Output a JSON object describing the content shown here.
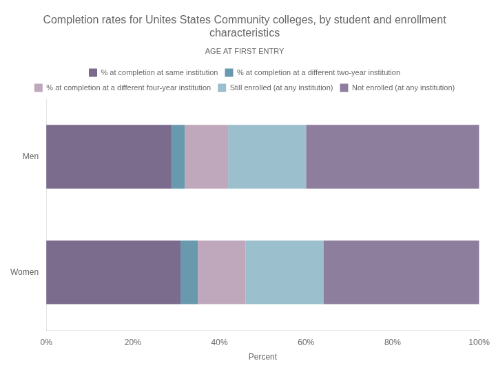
{
  "chart_data": {
    "type": "bar",
    "orientation": "horizontal",
    "stacked": true,
    "title": "Completion rates for Unites States Community colleges, by student and enrollment\ncharacteristics",
    "subtitle": "AGE AT FIRST ENTRY",
    "xlabel": "Percent",
    "categories": [
      "Men",
      "Women"
    ],
    "series": [
      {
        "name": "% at completion at same institution",
        "color": "#7B6B8D",
        "values": [
          29,
          31
        ]
      },
      {
        "name": "% at completion at a different two-year institution",
        "color": "#6899AD",
        "values": [
          3,
          4
        ]
      },
      {
        "name": "% at completion at a different four-year institution",
        "color": "#C0A8BC",
        "values": [
          10,
          11
        ]
      },
      {
        "name": "Still enrolled (at any institution)",
        "color": "#9BBFCC",
        "values": [
          18,
          18
        ]
      },
      {
        "name": "Not enrolled (at any institution)",
        "color": "#8E7E9E",
        "values": [
          40,
          36
        ]
      }
    ],
    "xlim": [
      0,
      100
    ],
    "xticks": [
      {
        "value": 0,
        "label": "0%"
      },
      {
        "value": 20,
        "label": "20%"
      },
      {
        "value": 40,
        "label": "40%"
      },
      {
        "value": 60,
        "label": "60%"
      },
      {
        "value": 80,
        "label": "80%"
      },
      {
        "value": 100,
        "label": "100%"
      }
    ],
    "grid": false,
    "legend": "top"
  }
}
